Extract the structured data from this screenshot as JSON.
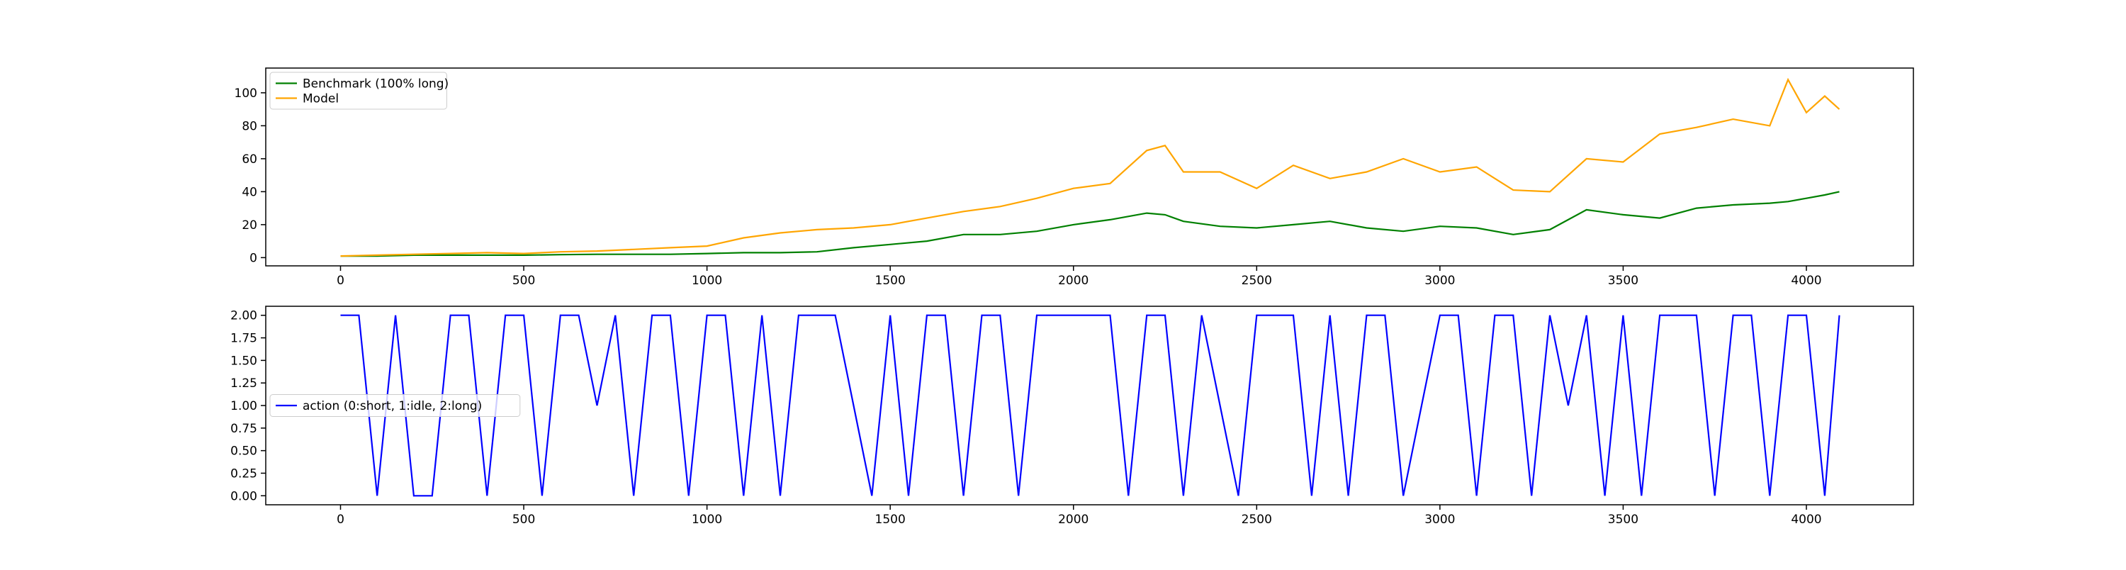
{
  "chart_data": [
    {
      "type": "line",
      "x": [
        0,
        100,
        200,
        300,
        400,
        500,
        600,
        700,
        800,
        900,
        1000,
        1100,
        1200,
        1300,
        1400,
        1500,
        1600,
        1700,
        1800,
        1900,
        2000,
        2100,
        2200,
        2250,
        2300,
        2400,
        2500,
        2600,
        2700,
        2800,
        2900,
        3000,
        3100,
        3200,
        3300,
        3400,
        3500,
        3600,
        3700,
        3800,
        3900,
        3950,
        4000,
        4050,
        4090
      ],
      "series": [
        {
          "name": "Benchmark (100% long)",
          "color": "#008000",
          "values": [
            1,
            1,
            1.5,
            1.5,
            1.5,
            1.5,
            1.8,
            2,
            2,
            2,
            2.5,
            3,
            3,
            3.5,
            6,
            8,
            10,
            14,
            14,
            16,
            20,
            23,
            27,
            26,
            22,
            19,
            18,
            20,
            22,
            18,
            16,
            19,
            18,
            14,
            17,
            29,
            26,
            24,
            30,
            32,
            33,
            34,
            36,
            38,
            40
          ]
        },
        {
          "name": "Model",
          "color": "#ffa500",
          "values": [
            1,
            1.5,
            2,
            2.5,
            3,
            2.5,
            3.5,
            4,
            5,
            6,
            7,
            12,
            15,
            17,
            18,
            20,
            24,
            28,
            31,
            36,
            42,
            45,
            65,
            68,
            52,
            52,
            42,
            56,
            48,
            52,
            60,
            52,
            55,
            41,
            40,
            60,
            58,
            75,
            79,
            84,
            80,
            108,
            88,
            98,
            90
          ]
        }
      ],
      "xlim": [
        -204,
        4292
      ],
      "xticks": [
        0,
        500,
        1000,
        1500,
        2000,
        2500,
        3000,
        3500,
        4000
      ],
      "ylim": [
        -5,
        115
      ],
      "yticks": [
        0,
        20,
        40,
        60,
        80,
        100
      ],
      "legend": "upper left"
    },
    {
      "type": "line",
      "x": [
        0,
        50,
        100,
        150,
        200,
        250,
        300,
        350,
        400,
        450,
        500,
        550,
        600,
        650,
        700,
        750,
        800,
        850,
        900,
        950,
        1000,
        1050,
        1100,
        1150,
        1200,
        1250,
        1300,
        1350,
        1400,
        1450,
        1500,
        1550,
        1600,
        1650,
        1700,
        1750,
        1800,
        1850,
        1900,
        1950,
        2000,
        2050,
        2100,
        2150,
        2200,
        2250,
        2300,
        2350,
        2400,
        2450,
        2500,
        2550,
        2600,
        2650,
        2700,
        2750,
        2800,
        2850,
        2900,
        2950,
        3000,
        3050,
        3100,
        3150,
        3200,
        3250,
        3300,
        3350,
        3400,
        3450,
        3500,
        3550,
        3600,
        3650,
        3700,
        3750,
        3800,
        3850,
        3900,
        3950,
        4000,
        4050,
        4090
      ],
      "series": [
        {
          "name": "action (0:short, 1:idle, 2:long)",
          "color": "#0000ff",
          "values": [
            2,
            2,
            0,
            2,
            0,
            0,
            2,
            2,
            0,
            2,
            2,
            0,
            2,
            2,
            1,
            2,
            0,
            2,
            2,
            0,
            2,
            2,
            0,
            2,
            0,
            2,
            2,
            2,
            1,
            0,
            2,
            0,
            2,
            2,
            0,
            2,
            2,
            0,
            2,
            2,
            2,
            2,
            2,
            0,
            2,
            2,
            0,
            2,
            1,
            0,
            2,
            2,
            2,
            0,
            2,
            0,
            2,
            2,
            0,
            1,
            2,
            2,
            0,
            2,
            2,
            0,
            2,
            1,
            2,
            0,
            2,
            0,
            2,
            2,
            2,
            0,
            2,
            2,
            0,
            2,
            2,
            0,
            2
          ]
        }
      ],
      "xlim": [
        -204,
        4292
      ],
      "xticks": [
        0,
        500,
        1000,
        1500,
        2000,
        2500,
        3000,
        3500,
        4000
      ],
      "ylim": [
        -0.1,
        2.1
      ],
      "yticks": [
        {
          "value": 0,
          "label": "0.00"
        },
        {
          "value": 0.25,
          "label": "0.25"
        },
        {
          "value": 0.5,
          "label": "0.50"
        },
        {
          "value": 0.75,
          "label": "0.75"
        },
        {
          "value": 1,
          "label": "1.00"
        },
        {
          "value": 1.25,
          "label": "1.25"
        },
        {
          "value": 1.5,
          "label": "1.50"
        },
        {
          "value": 1.75,
          "label": "1.75"
        },
        {
          "value": 2,
          "label": "2.00"
        }
      ],
      "legend": "center left"
    }
  ]
}
